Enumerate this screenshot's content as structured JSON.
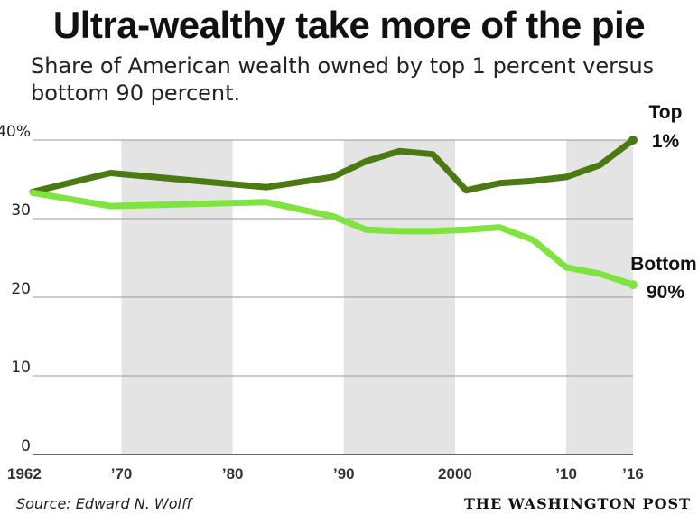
{
  "chart_data": {
    "type": "line",
    "title": "Ultra-wealthy take more of the pie",
    "subtitle": "Share of American wealth owned by top 1 percent versus bottom 90 percent.",
    "xlim": [
      1962,
      2016
    ],
    "ylim": [
      0,
      40
    ],
    "yticks": [
      0,
      10,
      20,
      30,
      40
    ],
    "ytick_labels": [
      "0",
      "10",
      "20",
      "30",
      "40%"
    ],
    "xticks": [
      1962,
      1970,
      1980,
      1990,
      2000,
      2010,
      2016
    ],
    "xtick_labels": [
      "1962",
      "’70",
      "’80",
      "’90",
      "2000",
      "’10",
      "’16"
    ],
    "shaded_ranges": [
      [
        1970,
        1980
      ],
      [
        1990,
        2000
      ],
      [
        2010,
        2016
      ]
    ],
    "series": [
      {
        "name": "Top 1%",
        "label_lines": [
          "Top",
          "1%"
        ],
        "color": "#4b7a12",
        "x": [
          1962,
          1969,
          1983,
          1989,
          1992,
          1995,
          1998,
          2001,
          2004,
          2007,
          2010,
          2013,
          2016
        ],
        "values": [
          33.4,
          35.8,
          34.0,
          35.3,
          37.3,
          38.6,
          38.2,
          33.6,
          34.5,
          34.8,
          35.3,
          36.8,
          40.0
        ]
      },
      {
        "name": "Bottom 90%",
        "label_lines": [
          "Bottom",
          "90%"
        ],
        "color": "#7fe340",
        "x": [
          1962,
          1969,
          1983,
          1989,
          1992,
          1995,
          1998,
          2001,
          2004,
          2007,
          2010,
          2013,
          2016
        ],
        "values": [
          33.3,
          31.6,
          32.1,
          30.3,
          28.6,
          28.4,
          28.4,
          28.6,
          28.9,
          27.3,
          23.8,
          23.0,
          21.6
        ]
      }
    ]
  },
  "footer": {
    "source": "Source: Edward N. Wolff",
    "publisher": "THE WASHINGTON POST"
  }
}
